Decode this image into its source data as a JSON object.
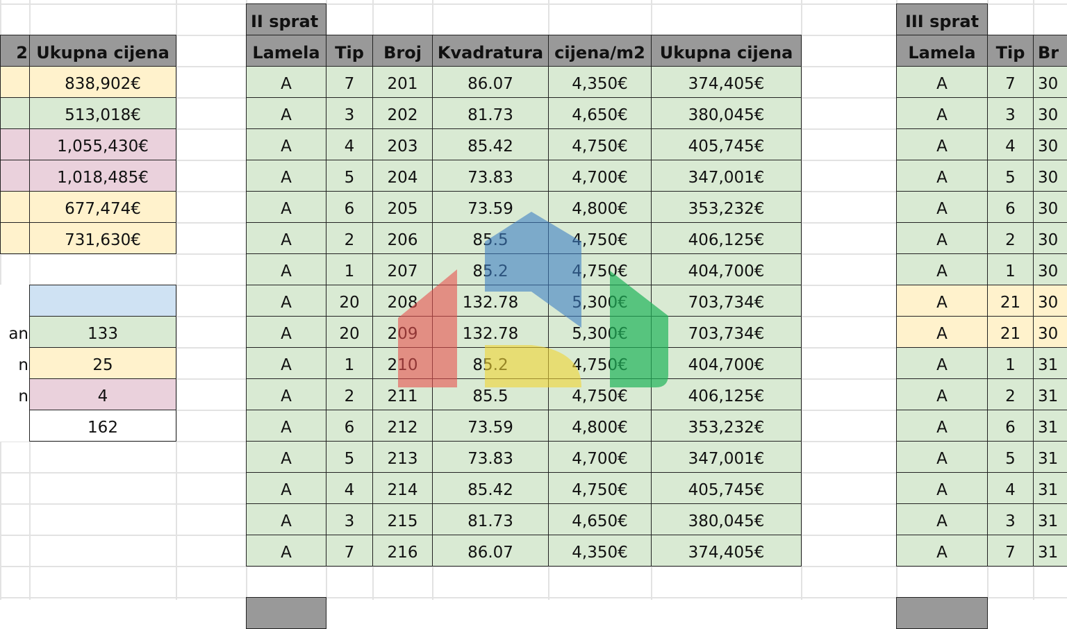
{
  "colors": {
    "green": "#d9ead3",
    "yellow": "#fff2cc",
    "pink": "#ead1dc",
    "blue": "#cfe2f3",
    "header": "#999999"
  },
  "left_table": {
    "headers": [
      "2",
      "Ukupna cijena"
    ],
    "rows": [
      {
        "color": "yellow",
        "value": "838,902€"
      },
      {
        "color": "green",
        "value": "513,018€"
      },
      {
        "color": "pink",
        "value": "1,055,430€"
      },
      {
        "color": "pink",
        "value": "1,018,485€"
      },
      {
        "color": "yellow",
        "value": "677,474€"
      },
      {
        "color": "yellow",
        "value": "731,630€"
      }
    ],
    "summary": [
      {
        "label": "",
        "value": "",
        "color": "blue"
      },
      {
        "label": "an",
        "value": "133",
        "color": "green"
      },
      {
        "label": "n",
        "value": "25",
        "color": "yellow"
      },
      {
        "label": "n",
        "value": "4",
        "color": "pink"
      },
      {
        "label": "",
        "value": "162",
        "color": "white"
      }
    ]
  },
  "floor2": {
    "title": "II sprat",
    "headers": [
      "Lamela",
      "Tip",
      "Broj",
      "Kvadratura",
      "cijena/m2",
      "Ukupna cijena"
    ],
    "rows": [
      [
        "A",
        "7",
        "201",
        "86.07",
        "4,350€",
        "374,405€"
      ],
      [
        "A",
        "3",
        "202",
        "81.73",
        "4,650€",
        "380,045€"
      ],
      [
        "A",
        "4",
        "203",
        "85.42",
        "4,750€",
        "405,745€"
      ],
      [
        "A",
        "5",
        "204",
        "73.83",
        "4,700€",
        "347,001€"
      ],
      [
        "A",
        "6",
        "205",
        "73.59",
        "4,800€",
        "353,232€"
      ],
      [
        "A",
        "2",
        "206",
        "85.5",
        "4,750€",
        "406,125€"
      ],
      [
        "A",
        "1",
        "207",
        "85.2",
        "4,750€",
        "404,700€"
      ],
      [
        "A",
        "20",
        "208",
        "132.78",
        "5,300€",
        "703,734€"
      ],
      [
        "A",
        "20",
        "209",
        "132.78",
        "5,300€",
        "703,734€"
      ],
      [
        "A",
        "1",
        "210",
        "85.2",
        "4,750€",
        "404,700€"
      ],
      [
        "A",
        "2",
        "211",
        "85.5",
        "4,750€",
        "406,125€"
      ],
      [
        "A",
        "6",
        "212",
        "73.59",
        "4,800€",
        "353,232€"
      ],
      [
        "A",
        "5",
        "213",
        "73.83",
        "4,700€",
        "347,001€"
      ],
      [
        "A",
        "4",
        "214",
        "85.42",
        "4,750€",
        "405,745€"
      ],
      [
        "A",
        "3",
        "215",
        "81.73",
        "4,650€",
        "380,045€"
      ],
      [
        "A",
        "7",
        "216",
        "86.07",
        "4,350€",
        "374,405€"
      ]
    ],
    "row_colors": [
      "green",
      "green",
      "green",
      "green",
      "green",
      "green",
      "green",
      "green",
      "green",
      "green",
      "green",
      "green",
      "green",
      "green",
      "green",
      "green"
    ]
  },
  "floor3": {
    "title": "III sprat",
    "headers": [
      "Lamela",
      "Tip",
      "Br"
    ],
    "rows": [
      [
        "A",
        "7",
        "30"
      ],
      [
        "A",
        "3",
        "30"
      ],
      [
        "A",
        "4",
        "30"
      ],
      [
        "A",
        "5",
        "30"
      ],
      [
        "A",
        "6",
        "30"
      ],
      [
        "A",
        "2",
        "30"
      ],
      [
        "A",
        "1",
        "30"
      ],
      [
        "A",
        "21",
        "30"
      ],
      [
        "A",
        "21",
        "30"
      ],
      [
        "A",
        "1",
        "31"
      ],
      [
        "A",
        "2",
        "31"
      ],
      [
        "A",
        "6",
        "31"
      ],
      [
        "A",
        "5",
        "31"
      ],
      [
        "A",
        "4",
        "31"
      ],
      [
        "A",
        "3",
        "31"
      ],
      [
        "A",
        "7",
        "31"
      ]
    ],
    "row_colors": [
      "green",
      "green",
      "green",
      "green",
      "green",
      "green",
      "green",
      "yellow",
      "yellow",
      "green",
      "green",
      "green",
      "green",
      "green",
      "green",
      "green"
    ]
  },
  "watermark": {
    "icon": "house-logo-icon",
    "colors": [
      "#e8504f",
      "#3d7fc4",
      "#f0d433",
      "#1fb45a"
    ]
  }
}
